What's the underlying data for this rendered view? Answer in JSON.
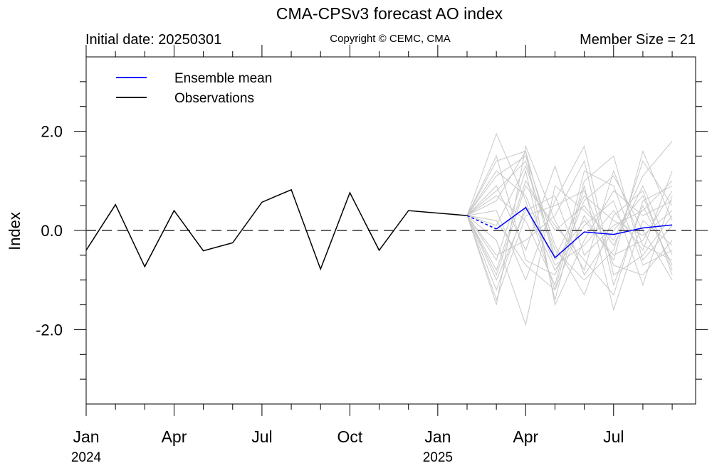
{
  "header": {
    "title": "CMA-CPSv3 forecast AO index",
    "initial_date": "Initial date: 20250301",
    "copyright": "Copyright © CEMC, CMA",
    "member_size": "Member Size = 21"
  },
  "chart_data": {
    "type": "line",
    "ylabel": "Index",
    "ylim": [
      -3.5,
      3.5
    ],
    "xlim": [
      0,
      20.8
    ],
    "x_axis": {
      "ticks": [
        {
          "x": 0,
          "label": "Jan",
          "year": "2024"
        },
        {
          "x": 3,
          "label": "Apr",
          "year": ""
        },
        {
          "x": 6,
          "label": "Jul",
          "year": ""
        },
        {
          "x": 9,
          "label": "Oct",
          "year": ""
        },
        {
          "x": 12,
          "label": "Jan",
          "year": "2025"
        },
        {
          "x": 15,
          "label": "Apr",
          "year": ""
        },
        {
          "x": 18,
          "label": "Jul",
          "year": ""
        }
      ],
      "minor_ticks": [
        1,
        2,
        4,
        5,
        7,
        8,
        10,
        11,
        13,
        14,
        16,
        17,
        19,
        20
      ]
    },
    "y_axis": {
      "major_ticks": [
        {
          "v": 2.0,
          "label": "2.0"
        },
        {
          "v": 0.0,
          "label": "0.0"
        },
        {
          "v": -2.0,
          "label": "-2.0"
        }
      ],
      "minor_ticks": [
        3.0,
        2.5,
        1.5,
        1.0,
        0.5,
        -0.5,
        -1.0,
        -1.5,
        -2.5,
        -3.0
      ]
    },
    "zero_line": 0.0,
    "legend": {
      "placement": "top-left",
      "entries": [
        {
          "name": "Ensemble mean",
          "color": "#0000ff"
        },
        {
          "name": "Observations",
          "color": "#000000"
        }
      ]
    },
    "observations": {
      "name": "Observations",
      "color": "#000000",
      "points": [
        [
          0,
          -0.4
        ],
        [
          1,
          0.52
        ],
        [
          2,
          -0.73
        ],
        [
          3,
          0.4
        ],
        [
          4,
          -0.41
        ],
        [
          5,
          -0.25
        ],
        [
          6,
          0.57
        ],
        [
          7,
          0.82
        ],
        [
          8,
          -0.78
        ],
        [
          9,
          0.76
        ],
        [
          10,
          -0.4
        ],
        [
          11,
          0.4
        ],
        [
          13,
          0.3
        ]
      ]
    },
    "ensemble_mean": {
      "name": "Ensemble mean",
      "color": "#0000ff",
      "dashed_from": [
        13,
        0.3
      ],
      "points": [
        [
          14,
          0.03
        ],
        [
          15,
          0.46
        ],
        [
          16,
          -0.55
        ],
        [
          17,
          -0.03
        ],
        [
          18,
          -0.08
        ],
        [
          19,
          0.05
        ],
        [
          20,
          0.11
        ]
      ]
    },
    "members_color": "#c8c8c8",
    "members": [
      [
        0.3,
        1.4,
        1.6,
        -0.55,
        0.7,
        0.2,
        -0.1,
        0.4
      ],
      [
        0.3,
        1.95,
        0.6,
        -1.2,
        0.3,
        -0.6,
        1.6,
        0.2
      ],
      [
        0.3,
        -1.5,
        1.7,
        0.2,
        -0.8,
        1.2,
        -0.3,
        -0.6
      ],
      [
        0.3,
        0.9,
        -0.4,
        1.3,
        -0.5,
        0.1,
        0.4,
        1.0
      ],
      [
        0.3,
        -0.6,
        1.2,
        -1.4,
        0.9,
        -1.6,
        0.2,
        -0.3
      ],
      [
        0.3,
        0.4,
        -1.0,
        0.6,
        1.7,
        -0.9,
        -0.5,
        0.3
      ],
      [
        0.3,
        -1.2,
        0.5,
        -0.8,
        0.1,
        0.6,
        -1.1,
        0.7
      ],
      [
        0.3,
        1.1,
        1.5,
        -0.3,
        -1.3,
        0.3,
        0.8,
        -0.9
      ],
      [
        0.3,
        -0.2,
        -1.9,
        0.9,
        0.4,
        -0.2,
        1.1,
        1.8
      ],
      [
        0.3,
        0.7,
        0.2,
        -1.1,
        1.2,
        0.9,
        -0.7,
        -0.4
      ],
      [
        0.3,
        -0.9,
        0.9,
        0.1,
        -0.6,
        -1.3,
        0.6,
        0.9
      ],
      [
        0.3,
        1.5,
        -0.6,
        -0.9,
        0.6,
        1.1,
        0.0,
        -1.0
      ],
      [
        0.3,
        0.1,
        1.3,
        -0.4,
        -1.0,
        -0.4,
        1.4,
        0.5
      ],
      [
        0.3,
        -1.4,
        0.3,
        0.5,
        0.8,
        -0.7,
        -0.9,
        -0.2
      ],
      [
        0.3,
        0.6,
        1.6,
        -1.5,
        -0.2,
        0.8,
        0.3,
        0.6
      ],
      [
        0.3,
        -0.5,
        -0.2,
        0.3,
        1.4,
        -1.1,
        0.5,
        -0.7
      ],
      [
        0.3,
        1.2,
        0.7,
        -0.7,
        -0.3,
        0.4,
        -0.4,
        1.2
      ],
      [
        0.3,
        -0.8,
        1.0,
        0.0,
        0.5,
        -0.3,
        0.9,
        -0.5
      ],
      [
        0.3,
        0.2,
        -0.7,
        -1.2,
        1.0,
        1.5,
        -0.6,
        0.1
      ],
      [
        0.3,
        -1.0,
        0.4,
        0.7,
        -0.9,
        0.0,
        0.7,
        -0.8
      ],
      [
        0.3,
        0.8,
        1.4,
        -0.6,
        0.2,
        -0.5,
        -0.2,
        0.8
      ]
    ]
  }
}
